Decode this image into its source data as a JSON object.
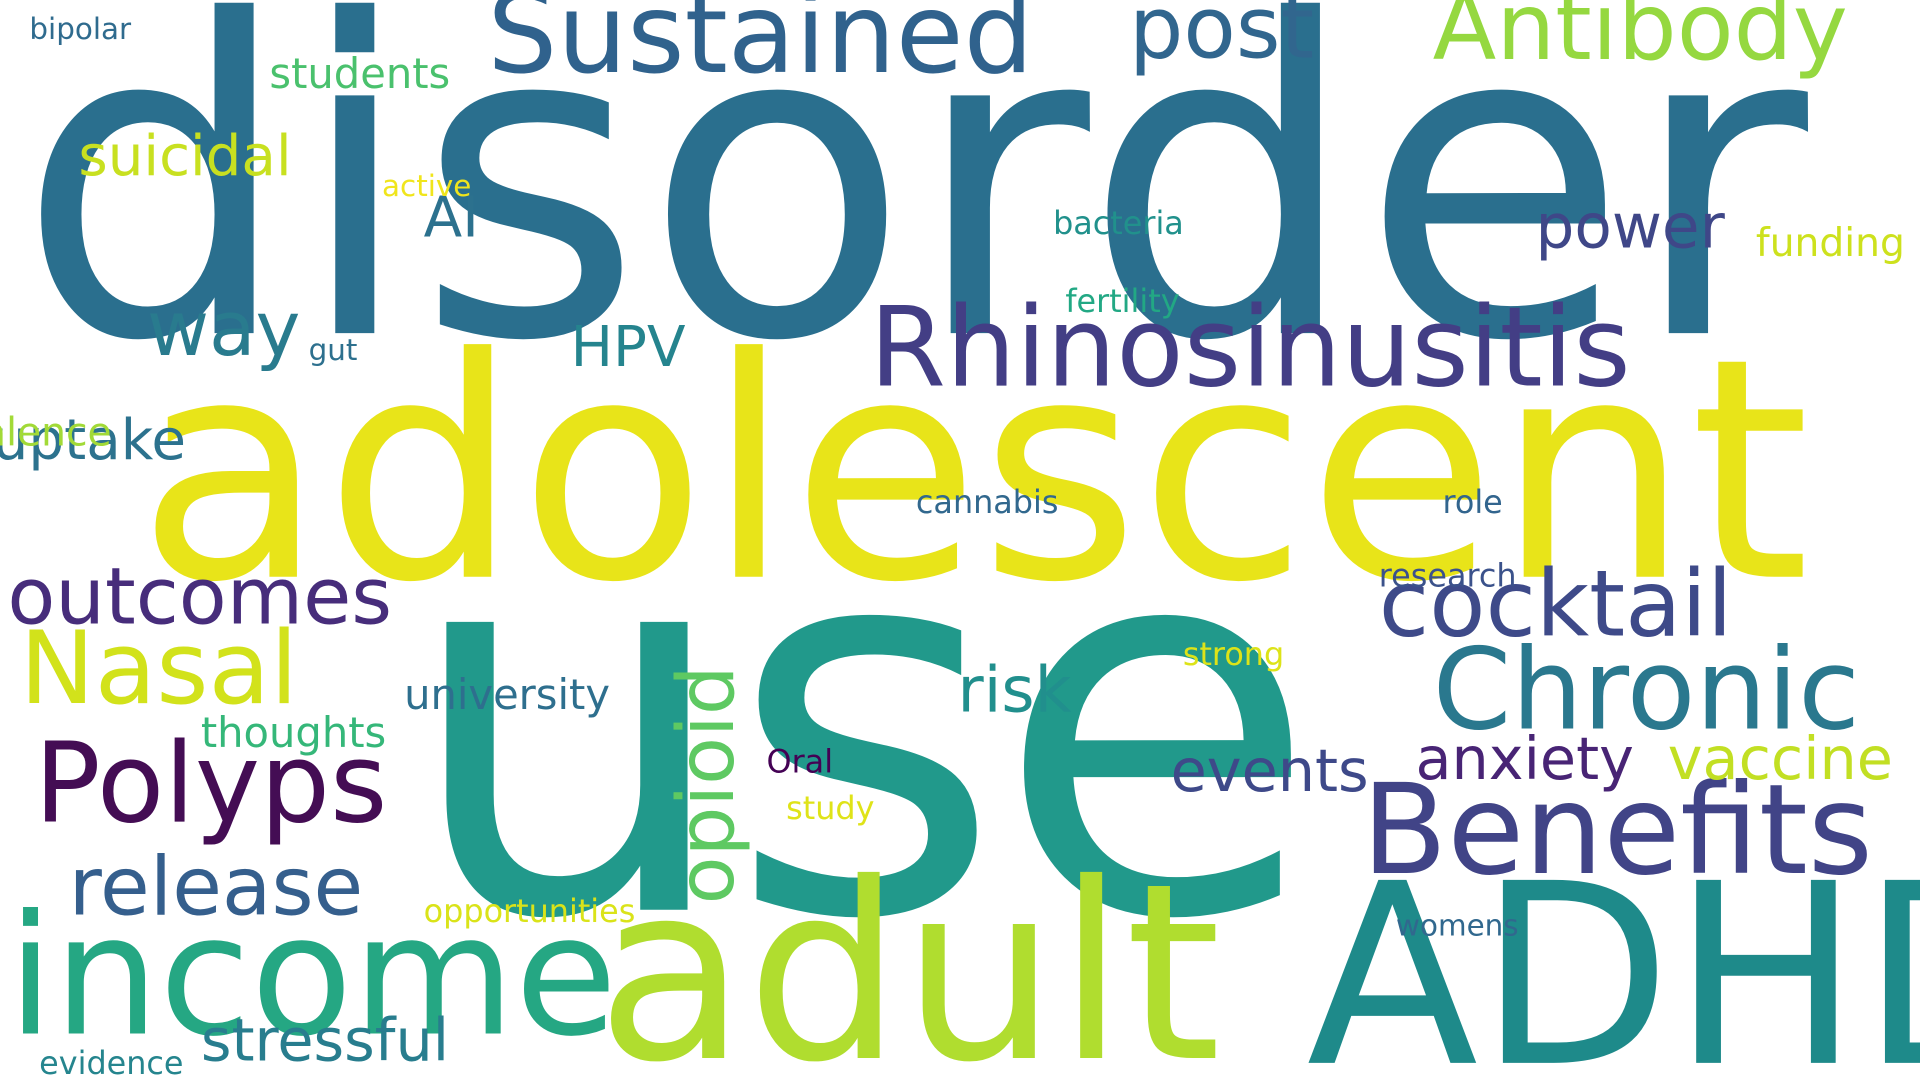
{
  "words": [
    {
      "text": "disorder",
      "color": "#2a6f8e"
    },
    {
      "text": "adolescent",
      "color": "#e8e419"
    },
    {
      "text": "use",
      "color": "#21998b"
    },
    {
      "text": "adult",
      "color": "#b0dd2f"
    },
    {
      "text": "ADHD",
      "color": "#1e8a8a"
    },
    {
      "text": "income",
      "color": "#25a783"
    },
    {
      "text": "Sustained",
      "color": "#30628d"
    },
    {
      "text": "Rhinosinusitis",
      "color": "#433e85"
    },
    {
      "text": "Benefits",
      "color": "#414487"
    },
    {
      "text": "Chronic",
      "color": "#2a788e"
    },
    {
      "text": "Antibody",
      "color": "#95d840"
    },
    {
      "text": "Polyps",
      "color": "#440d54"
    },
    {
      "text": "cocktail",
      "color": "#3e4a89"
    },
    {
      "text": "Nasal",
      "color": "#d2e21b"
    },
    {
      "text": "outcomes",
      "color": "#472d7b"
    },
    {
      "text": "release",
      "color": "#355f8d"
    },
    {
      "text": "post",
      "color": "#31668e"
    },
    {
      "text": "opioid",
      "color": "#5ec962"
    },
    {
      "text": "way",
      "color": "#297b8e"
    },
    {
      "text": "stressful",
      "color": "#287d8e"
    },
    {
      "text": "events",
      "color": "#3e4989"
    },
    {
      "text": "anxiety",
      "color": "#482475"
    },
    {
      "text": "vaccine",
      "color": "#c2df23"
    },
    {
      "text": "risk",
      "color": "#218f8d"
    },
    {
      "text": "power",
      "color": "#3f4788"
    },
    {
      "text": "suicidal",
      "color": "#c8e020"
    },
    {
      "text": "uptake",
      "color": "#2c728e"
    },
    {
      "text": "HPV",
      "color": "#25848e"
    },
    {
      "text": "AI",
      "color": "#2c718e"
    },
    {
      "text": "thoughts",
      "color": "#35b779"
    },
    {
      "text": "university",
      "color": "#2e6f8e"
    },
    {
      "text": "prevalence",
      "color": "#a2da37"
    },
    {
      "text": "students",
      "color": "#4ac16d"
    },
    {
      "text": "funding",
      "color": "#cde11d"
    },
    {
      "text": "opportunities",
      "color": "#dae319"
    },
    {
      "text": "evidence",
      "color": "#25858e"
    },
    {
      "text": "womens",
      "color": "#31688e"
    },
    {
      "text": "research",
      "color": "#3b528b"
    },
    {
      "text": "strong",
      "color": "#dde318"
    },
    {
      "text": "cannabis",
      "color": "#31688e"
    },
    {
      "text": "role",
      "color": "#32658e"
    },
    {
      "text": "bacteria",
      "color": "#21918c"
    },
    {
      "text": "fertility",
      "color": "#22a884"
    },
    {
      "text": "active",
      "color": "#f0e51c"
    },
    {
      "text": "Oral",
      "color": "#440154"
    },
    {
      "text": "study",
      "color": "#dfe318"
    },
    {
      "text": "gut",
      "color": "#2d708e"
    },
    {
      "text": "bipolar",
      "color": "#2f6b8e"
    }
  ]
}
